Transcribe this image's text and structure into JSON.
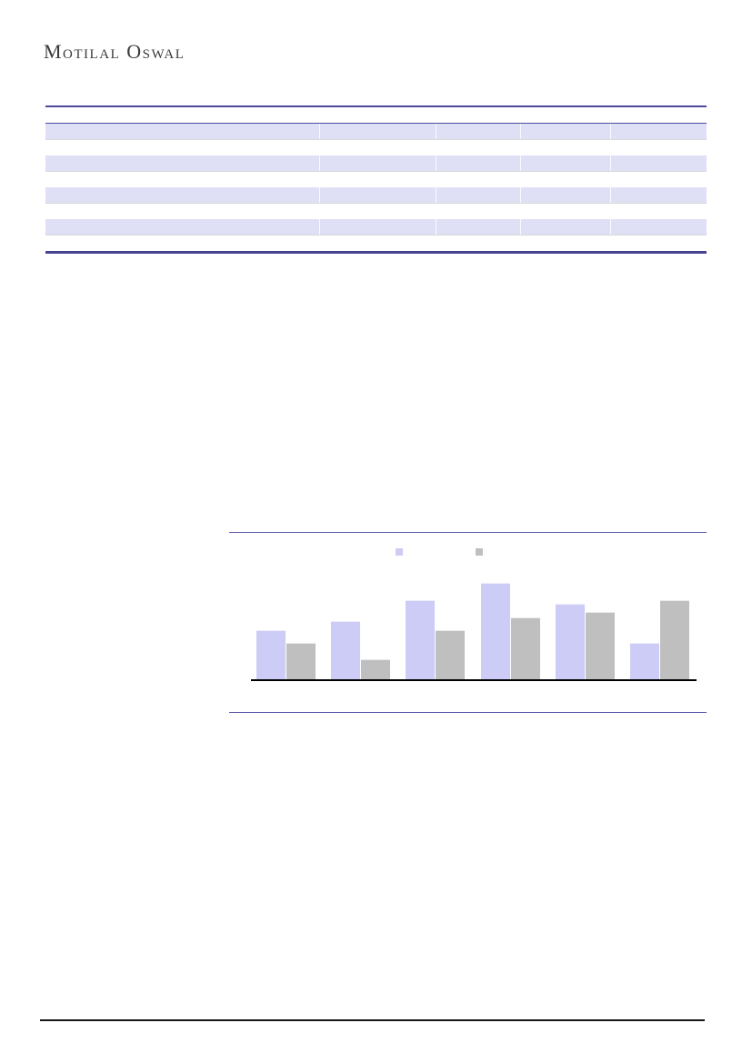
{
  "page": {
    "background": "#ffffff"
  },
  "header": {
    "logo_text": "Motilal Oswal"
  },
  "colors": {
    "logo_text": "#3a3a3a",
    "table_rule": "#4d4b9e",
    "table_stripe": "#dfdff6",
    "table_hairline": "#d8d8d8",
    "chart_rule": "#5956a8",
    "axis_line": "#000000",
    "footer_rule": "#161616"
  },
  "table": {
    "header_cells": [
      "",
      "",
      "",
      "",
      ""
    ],
    "rows": [
      {
        "striped": true,
        "cells": [
          "",
          "",
          "",
          "",
          ""
        ]
      },
      {
        "striped": false,
        "cells": [
          "",
          "",
          "",
          "",
          ""
        ]
      },
      {
        "striped": true,
        "cells": [
          "",
          "",
          "",
          "",
          ""
        ]
      },
      {
        "striped": false,
        "cells": [
          "",
          "",
          "",
          "",
          ""
        ]
      },
      {
        "striped": true,
        "cells": [
          "",
          "",
          "",
          "",
          ""
        ]
      },
      {
        "striped": false,
        "cells": [
          "",
          "",
          "",
          "",
          ""
        ]
      },
      {
        "striped": true,
        "cells": [
          "",
          "",
          "",
          "",
          ""
        ]
      },
      {
        "striped": false,
        "cells": [
          "",
          "",
          "",
          "",
          ""
        ]
      }
    ]
  },
  "chart_data": {
    "type": "bar",
    "title": "",
    "xlabel": "",
    "ylabel": "",
    "categories": [
      "",
      "",
      "",
      "",
      "",
      ""
    ],
    "series": [
      {
        "name": "",
        "color": "#ccccf7",
        "values": [
          54,
          64,
          87,
          106,
          83,
          40
        ]
      },
      {
        "name": "",
        "color": "#bfbfbf",
        "values": [
          40,
          22,
          54,
          68,
          74,
          87
        ]
      }
    ],
    "ylim": [
      0,
      120
    ],
    "grid": false,
    "legend_position": "top-center",
    "axis_tick_labels_visible": false
  }
}
